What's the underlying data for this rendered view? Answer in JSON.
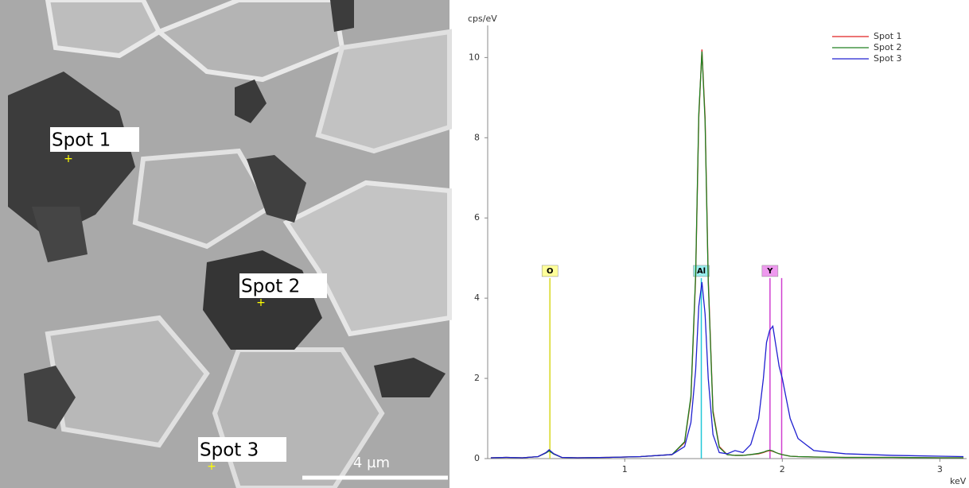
{
  "sem_image": {
    "spots": [
      "Spot 1",
      "Spot 2",
      "Spot 3"
    ],
    "scale_bar": "4 µm"
  },
  "chart_data": {
    "type": "line",
    "y_label": "cps/eV",
    "x_label": "keV",
    "x": [
      0.15,
      0.25,
      0.35,
      0.45,
      0.5,
      0.52,
      0.55,
      0.6,
      0.7,
      0.9,
      1.1,
      1.3,
      1.38,
      1.42,
      1.45,
      1.47,
      1.49,
      1.51,
      1.53,
      1.56,
      1.6,
      1.65,
      1.7,
      1.75,
      1.8,
      1.85,
      1.88,
      1.9,
      1.92,
      1.94,
      1.96,
      1.98,
      2.0,
      2.05,
      2.1,
      2.2,
      2.4,
      2.7,
      3.0,
      3.15
    ],
    "series": [
      {
        "name": "Spot 1",
        "color": "#e02020",
        "values": [
          0.02,
          0.03,
          0.02,
          0.05,
          0.15,
          0.2,
          0.12,
          0.03,
          0.02,
          0.03,
          0.05,
          0.1,
          0.4,
          1.5,
          4.5,
          8.5,
          10.2,
          8.5,
          4.5,
          1.2,
          0.3,
          0.1,
          0.08,
          0.08,
          0.1,
          0.12,
          0.15,
          0.18,
          0.2,
          0.18,
          0.15,
          0.12,
          0.1,
          0.06,
          0.05,
          0.04,
          0.03,
          0.03,
          0.02,
          0.02
        ]
      },
      {
        "name": "Spot 2",
        "color": "#208020",
        "values": [
          0.02,
          0.03,
          0.02,
          0.05,
          0.14,
          0.19,
          0.11,
          0.03,
          0.02,
          0.03,
          0.05,
          0.1,
          0.42,
          1.55,
          4.6,
          8.6,
          10.15,
          8.4,
          4.4,
          1.15,
          0.28,
          0.1,
          0.08,
          0.08,
          0.1,
          0.13,
          0.16,
          0.19,
          0.21,
          0.19,
          0.15,
          0.12,
          0.1,
          0.06,
          0.05,
          0.04,
          0.03,
          0.03,
          0.02,
          0.02
        ]
      },
      {
        "name": "Spot 3",
        "color": "#2020d0",
        "values": [
          0.02,
          0.03,
          0.02,
          0.05,
          0.15,
          0.22,
          0.12,
          0.03,
          0.02,
          0.03,
          0.05,
          0.1,
          0.3,
          0.9,
          2.2,
          3.8,
          4.4,
          3.6,
          2.0,
          0.6,
          0.15,
          0.12,
          0.2,
          0.15,
          0.35,
          1.0,
          2.0,
          2.9,
          3.2,
          3.3,
          2.8,
          2.3,
          2.0,
          1.0,
          0.5,
          0.2,
          0.12,
          0.08,
          0.06,
          0.05
        ]
      }
    ],
    "markers": [
      {
        "label": "O",
        "x": [
          0.525
        ],
        "color": "#d8d820",
        "label_color": "#ffff99",
        "height": 4.5
      },
      {
        "label": "Al",
        "x": [
          1.486
        ],
        "color": "#20c8d8",
        "label_color": "#99eeee",
        "height": 4.5
      },
      {
        "label": "Y",
        "x": [
          1.922,
          1.996
        ],
        "color": "#d040d0",
        "label_color": "#ee99ee",
        "height": 4.5
      }
    ],
    "xlim": [
      0.13,
      3.17
    ],
    "xticks": [
      1,
      2,
      3
    ],
    "ylim": [
      0,
      10.8
    ],
    "yticks": [
      0,
      2,
      4,
      6,
      8,
      10
    ],
    "legend": "top-right",
    "grid": false
  }
}
